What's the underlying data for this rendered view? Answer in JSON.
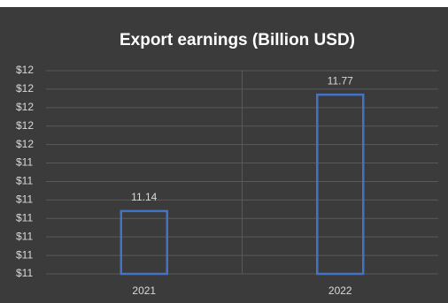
{
  "chart_data": {
    "type": "bar",
    "title": "Export earnings (Billion USD)",
    "categories": [
      "2021",
      "2022"
    ],
    "values": [
      11.14,
      11.77
    ],
    "color": "#4472c4",
    "ylim": [
      10.8,
      11.9
    ],
    "yticks": [
      {
        "value": 10.8,
        "label": "$11"
      },
      {
        "value": 10.9,
        "label": "$11"
      },
      {
        "value": 11.0,
        "label": "$11"
      },
      {
        "value": 11.1,
        "label": "$11"
      },
      {
        "value": 11.2,
        "label": "$11"
      },
      {
        "value": 11.3,
        "label": "$11"
      },
      {
        "value": 11.4,
        "label": "$11"
      },
      {
        "value": 11.5,
        "label": "$12"
      },
      {
        "value": 11.6,
        "label": "$12"
      },
      {
        "value": 11.7,
        "label": "$12"
      },
      {
        "value": 11.8,
        "label": "$12"
      },
      {
        "value": 11.9,
        "label": "$12"
      }
    ],
    "grid": true
  }
}
